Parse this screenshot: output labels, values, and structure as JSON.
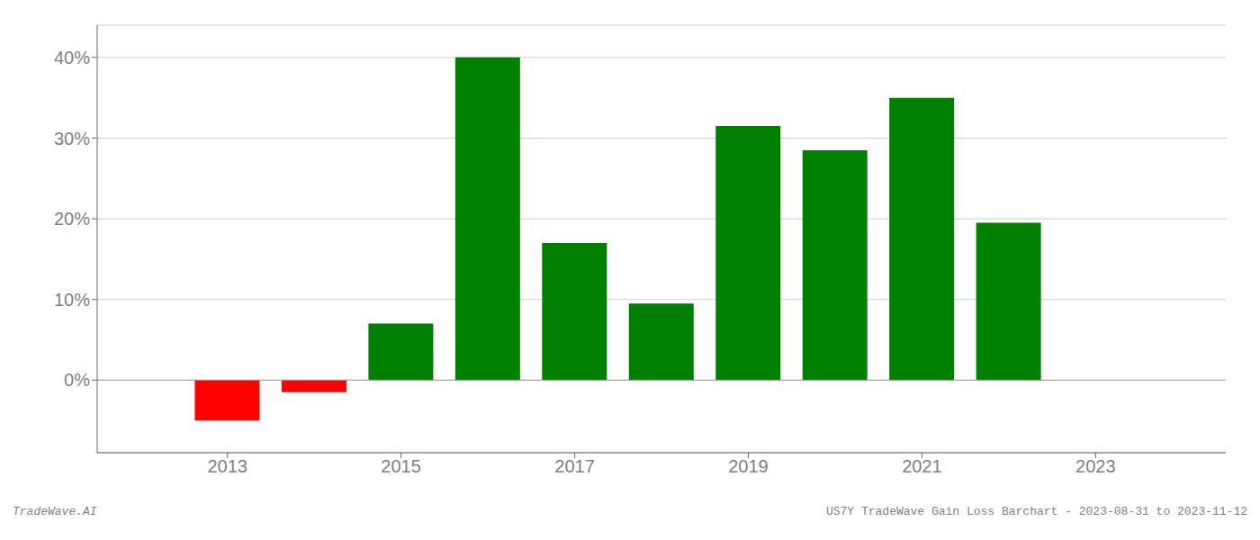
{
  "chart_data": {
    "type": "bar",
    "x": [
      2013,
      2014,
      2015,
      2016,
      2017,
      2018,
      2019,
      2020,
      2021,
      2022
    ],
    "values": [
      -5.0,
      -1.5,
      7.0,
      40.0,
      17.0,
      9.5,
      31.5,
      28.5,
      35.0,
      19.5
    ],
    "colors": [
      "#ff0000",
      "#ff0000",
      "#008000",
      "#008000",
      "#008000",
      "#008000",
      "#008000",
      "#008000",
      "#008000",
      "#008000"
    ],
    "xlim": [
      2011.5,
      2024.5
    ],
    "xticks": [
      2013,
      2015,
      2017,
      2019,
      2021,
      2023
    ],
    "ylim": [
      -9,
      44
    ],
    "yticks": [
      {
        "value": 0,
        "label": "0%"
      },
      {
        "value": 10,
        "label": "10%"
      },
      {
        "value": 20,
        "label": "20%"
      },
      {
        "value": 30,
        "label": "30%"
      },
      {
        "value": 40,
        "label": "40%"
      }
    ],
    "grid": true,
    "annotations": [
      "TradeWave.AI",
      "US7Y TradeWave Gain Loss Barchart - 2023-08-31 to 2023-11-12"
    ]
  }
}
